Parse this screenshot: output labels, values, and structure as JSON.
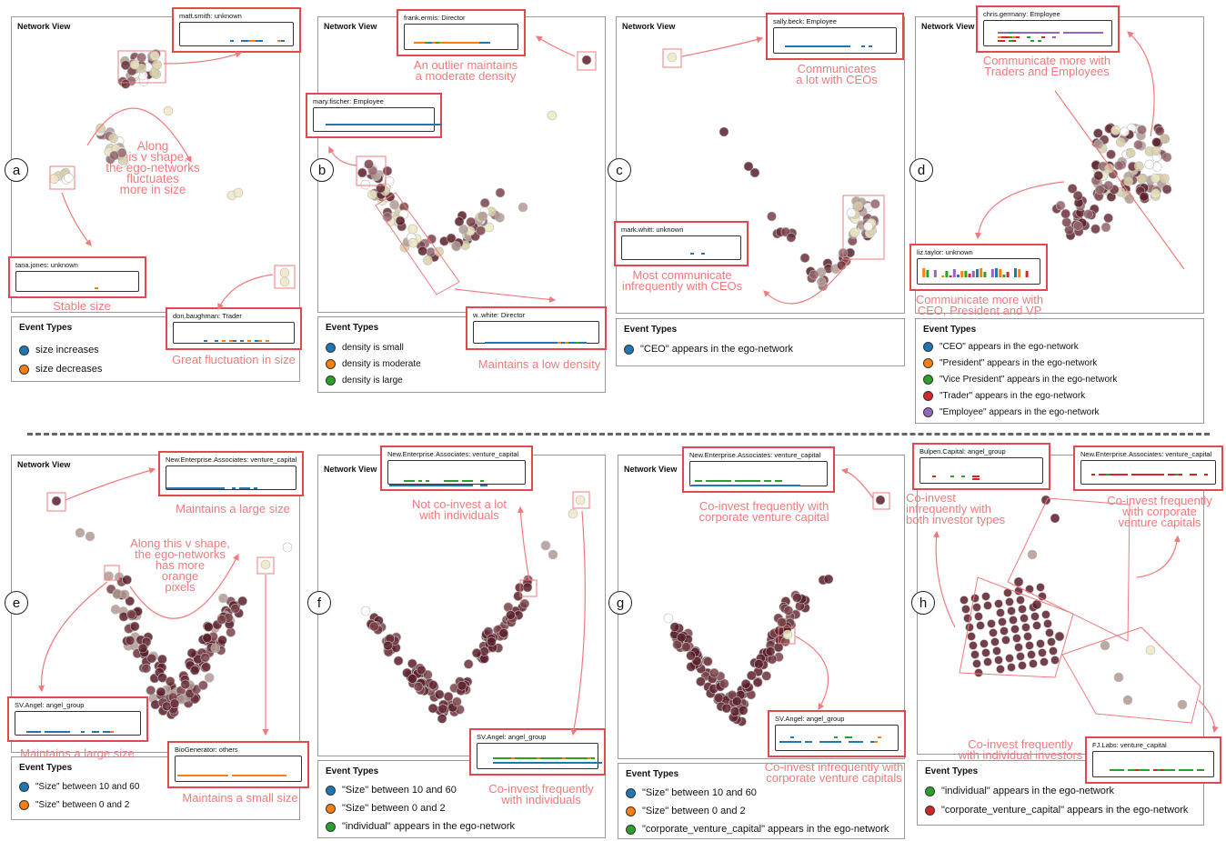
{
  "panels": [
    {
      "letter": "a",
      "title": "Network View",
      "legend_title": "Event Types",
      "legend": [
        {
          "label": "size increases",
          "color": "#1f77b4"
        },
        {
          "label": "size decreases",
          "color": "#ff7f0e"
        }
      ],
      "tooltips": [
        "matt.smith: unknown",
        "tana.jones: unknown",
        "don.baughman: Trader"
      ],
      "annotations": [
        "Along\nthis v shape,\nthe ego-networks\nfluctuates\nmore in size",
        "Stable size",
        "Great fluctuation in size"
      ]
    },
    {
      "letter": "b",
      "title": "Network View",
      "legend_title": "Event Types",
      "legend": [
        {
          "label": "density is small",
          "color": "#1f77b4"
        },
        {
          "label": "density is moderate",
          "color": "#ff7f0e"
        },
        {
          "label": "density is large",
          "color": "#2ca02c"
        }
      ],
      "tooltips": [
        "frank.ermis: Director",
        "mary.fischer: Employee",
        "w..white: Director"
      ],
      "annotations": [
        "An outlier maintains\na moderate density",
        "Maintains a low density"
      ]
    },
    {
      "letter": "c",
      "title": "Network View",
      "legend_title": "Event Types",
      "legend": [
        {
          "label": "\"CEO\" appears in the ego-network",
          "color": "#1f77b4"
        }
      ],
      "tooltips": [
        "sally.beck: Employee",
        "mark.whitt: unknown"
      ],
      "annotations": [
        "Communicates\na lot with CEOs",
        "Most communicate\ninfrequently with CEOs"
      ]
    },
    {
      "letter": "d",
      "title": "Network View",
      "legend_title": "Event Types",
      "legend": [
        {
          "label": "\"CEO\" appears in the ego-network",
          "color": "#1f77b4"
        },
        {
          "label": "\"President\" appears in the ego-network",
          "color": "#ff7f0e"
        },
        {
          "label": "\"Vice President\" appears in the ego-network",
          "color": "#2ca02c"
        },
        {
          "label": "\"Trader\" appears in the ego-network",
          "color": "#d62728"
        },
        {
          "label": "\"Employee\" appears in the ego-network",
          "color": "#9467bd"
        }
      ],
      "tooltips": [
        "chris.germany: Employee",
        "liz.taylor: unknown"
      ],
      "annotations": [
        "Communicate more with\nTraders and Employees",
        "Communicate more with\nCEO, President and VP"
      ]
    },
    {
      "letter": "e",
      "title": "Network View",
      "legend_title": "Event Types",
      "legend": [
        {
          "label": "\"Size\" between 10 and 60",
          "color": "#1f77b4"
        },
        {
          "label": "\"Size\" between 0 and 2",
          "color": "#ff7f0e"
        }
      ],
      "tooltips": [
        "New.Enterprise.Associates: venture_capital",
        "SV.Angel: angel_group",
        "BioGenerator: others"
      ],
      "annotations": [
        "Maintains a large size",
        "Along this v shape,\nthe ego-networks\nhas more\norange\npixels",
        "Maintains a large size",
        "Maintains a small size"
      ]
    },
    {
      "letter": "f",
      "title": "Network View",
      "legend_title": "Event Types",
      "legend": [
        {
          "label": "\"Size\" between 10 and 60",
          "color": "#1f77b4"
        },
        {
          "label": "\"Size\" between 0 and 2",
          "color": "#ff7f0e"
        },
        {
          "label": "\"individual\" appears in the ego-network",
          "color": "#2ca02c"
        }
      ],
      "tooltips": [
        "New.Enterprise.Associates: venture_capital",
        "SV.Angel: angel_group"
      ],
      "annotations": [
        "Not co-invest a lot\nwith individuals",
        "Co-invest frequently\nwith individuals"
      ]
    },
    {
      "letter": "g",
      "title": "Network View",
      "legend_title": "Event Types",
      "legend": [
        {
          "label": "\"Size\" between 10 and 60",
          "color": "#1f77b4"
        },
        {
          "label": "\"Size\" between 0 and 2",
          "color": "#ff7f0e"
        },
        {
          "label": "\"corporate_venture_capital\" appears in the ego-network",
          "color": "#2ca02c"
        }
      ],
      "tooltips": [
        "New.Enterprise.Associates: venture_capital",
        "SV.Angel: angel_group"
      ],
      "annotations": [
        "Co-invest frequently with\ncorporate venture capital",
        "Co-invest infrequently with\ncorporate venture capitals"
      ]
    },
    {
      "letter": "h",
      "title": "",
      "legend_title": "Event Types",
      "legend": [
        {
          "label": "\"individual\" appears in the ego-network",
          "color": "#2ca02c"
        },
        {
          "label": "\"corporate_venture_capital\" appears in the ego-network",
          "color": "#d62728"
        }
      ],
      "tooltips": [
        "Bulpen.Capital: angel_group",
        "New.Enterprise.Associates: venture_capital",
        "FJ.Labs: venture_capital"
      ],
      "annotations": [
        "Co-invest\ninfrequently with\nboth investor types",
        "Co-invest frequently\nwith corporate\nventure capitals",
        "Co-invest frequently\nwith individual investors"
      ]
    }
  ]
}
